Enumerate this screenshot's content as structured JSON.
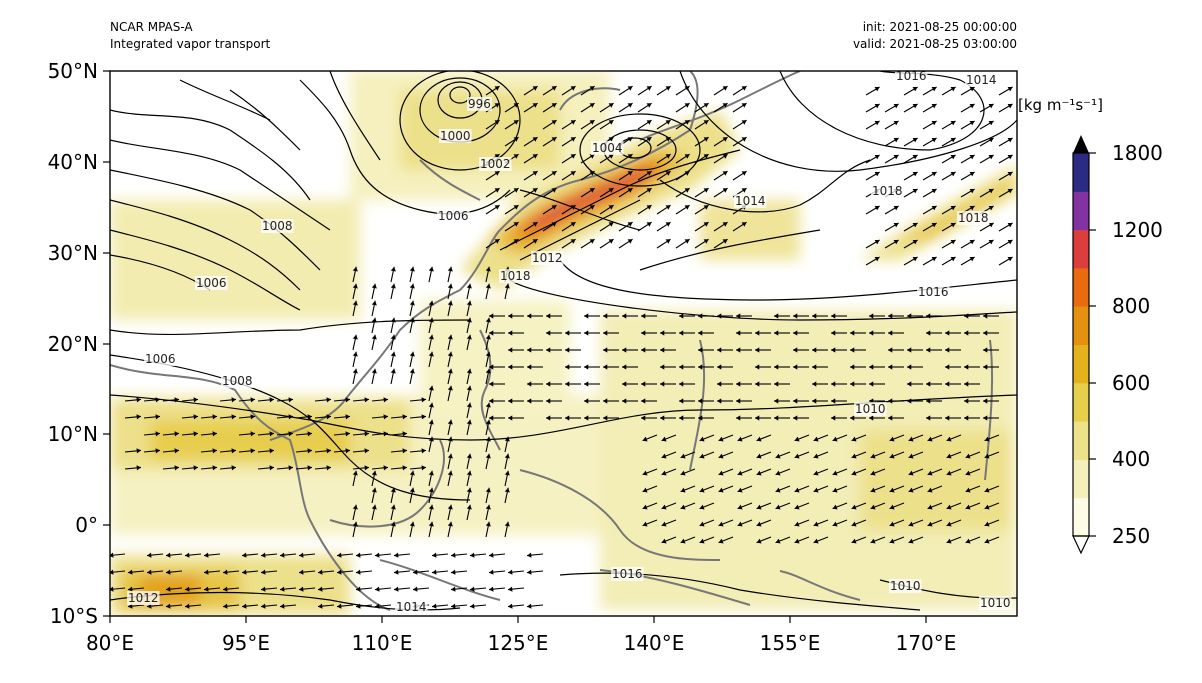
{
  "header": {
    "model": "NCAR MPAS-A",
    "field": "Integrated vapor transport",
    "init": "init: 2021-08-25 00:00:00",
    "valid": "valid: 2021-08-25 03:00:00"
  },
  "axes": {
    "lon_ticks": [
      "80°E",
      "95°E",
      "110°E",
      "125°E",
      "140°E",
      "155°E",
      "170°E"
    ],
    "lat_ticks": [
      "50°N",
      "40°N",
      "30°N",
      "20°N",
      "10°N",
      "0°",
      "10°S"
    ]
  },
  "pressure_labels": [
    "1016",
    "1014",
    "1018",
    "1014",
    "1018",
    "1016",
    "1018",
    "1010",
    "1010",
    "1010",
    "1006",
    "1006",
    "1008",
    "1006",
    "1012",
    "1014",
    "1016",
    "1012",
    "1002",
    "1000",
    "996",
    "1004",
    "1008"
  ],
  "colorbar": {
    "units": "[kg m⁻¹s⁻¹]",
    "ticks": [
      "1800",
      "1200",
      "800",
      "600",
      "400",
      "250"
    ],
    "colors": [
      "#fdfde6",
      "#f5f0bb",
      "#ece28a",
      "#e6cf4a",
      "#e3b21c",
      "#e3910f",
      "#ea6a12",
      "#dc3e3e",
      "#8233a1",
      "#2b2a85"
    ]
  }
}
